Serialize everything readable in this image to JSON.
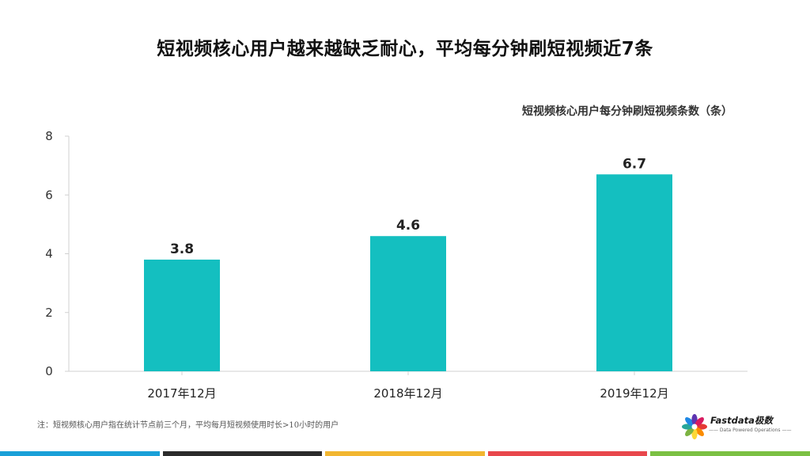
{
  "slide": {
    "title": "短视频核心用户越来越缺乏耐心，平均每分钟刷短视频近7条",
    "unit_label": "短视频核心用户每分钟刷短视频条数（条）",
    "footnote": "注：短视频核心用户指在统计节点前三个月，平均每月短视频使用时长>10小时的用户"
  },
  "logo": {
    "name": "Fastdata极数",
    "tagline": "—— Data Powered Operations ——",
    "petal_colors": [
      "#e53935",
      "#fb8c00",
      "#fdd835",
      "#7cb342",
      "#26a69a",
      "#1e88e5",
      "#5e35b1",
      "#d81b60"
    ]
  },
  "bottom_stripe_colors": [
    "#1aa0d8",
    "#2b2b2b",
    "#f2b630",
    "#e8474c",
    "#7bc043"
  ],
  "chart_data": {
    "type": "bar",
    "categories": [
      "2017年12月",
      "2018年12月",
      "2019年12月"
    ],
    "values": [
      3.8,
      4.6,
      6.7
    ],
    "data_labels": [
      "3.8",
      "4.6",
      "6.7"
    ],
    "ylim": [
      0,
      8
    ],
    "yticks": [
      0,
      2,
      4,
      6,
      8
    ],
    "bar_color": "#14bfc0",
    "grid": false,
    "legend": "none"
  }
}
